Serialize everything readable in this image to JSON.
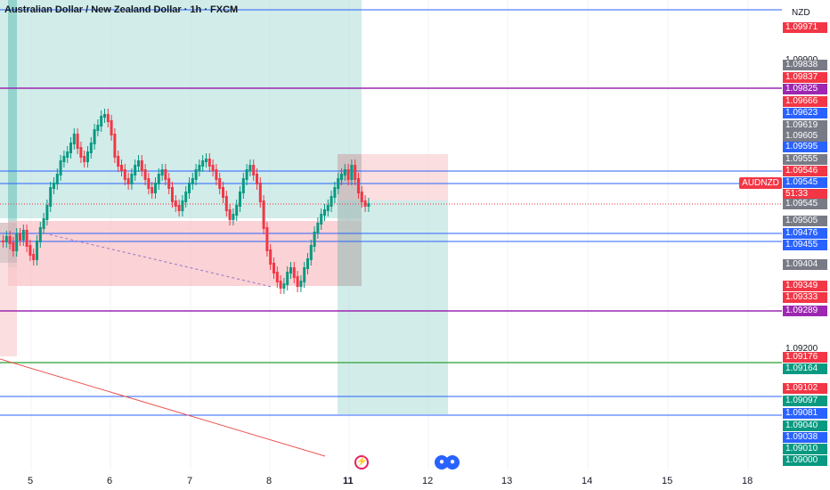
{
  "title": "Australian Dollar / New Zealand Dollar · 1h · FXCM",
  "currency": "NZD",
  "symbol_tag": "AUDNZD",
  "countdown": "51:33",
  "x_axis": [
    "5",
    "6",
    "7",
    "8",
    "11",
    "12",
    "13",
    "14",
    "15",
    "18"
  ],
  "price_tags": [
    {
      "text": "1.09971",
      "color": "#f23645"
    },
    {
      "text": "1.09900",
      "color": ""
    },
    {
      "text": "1.09838",
      "color": "#787b86"
    },
    {
      "text": "1.09837",
      "color": "#f23645"
    },
    {
      "text": "1.09825",
      "color": "#9c27b0"
    },
    {
      "text": "1.09666",
      "color": "#f23645"
    },
    {
      "text": "1.09623",
      "color": "#2962ff"
    },
    {
      "text": "1.09619",
      "color": "#787b86"
    },
    {
      "text": "1.09605",
      "color": "#787b86"
    },
    {
      "text": "1.09595",
      "color": "#2962ff"
    },
    {
      "text": "1.09555",
      "color": "#787b86"
    },
    {
      "text": "1.09546",
      "color": "#f23645"
    },
    {
      "text": "1.09545",
      "color": "#2962ff"
    },
    {
      "text": "1.09545",
      "color": "#787b86"
    },
    {
      "text": "1.09505",
      "color": "#787b86"
    },
    {
      "text": "1.09476",
      "color": "#2962ff"
    },
    {
      "text": "1.09455",
      "color": "#2962ff"
    },
    {
      "text": "1.09404",
      "color": "#787b86"
    },
    {
      "text": "1.09349",
      "color": "#f23645"
    },
    {
      "text": "1.09333",
      "color": "#f23645"
    },
    {
      "text": "1.09289",
      "color": "#9c27b0"
    },
    {
      "text": "1.09200",
      "color": ""
    },
    {
      "text": "1.09176",
      "color": "#f23645"
    },
    {
      "text": "1.09164",
      "color": "#089981"
    },
    {
      "text": "1.09102",
      "color": "#f23645"
    },
    {
      "text": "1.09097",
      "color": "#089981"
    },
    {
      "text": "1.09081",
      "color": "#2962ff"
    },
    {
      "text": "1.09040",
      "color": "#089981"
    },
    {
      "text": "1.09038",
      "color": "#2962ff"
    },
    {
      "text": "1.09010",
      "color": "#089981"
    },
    {
      "text": "1.09000",
      "color": "#089981"
    }
  ],
  "colors": {
    "up": "#089981",
    "down": "#f23645",
    "blue_line": "#2962ff",
    "purple_line": "#9c27b0",
    "green_line": "#4caf50",
    "target_zone": "#b2dfdb",
    "stop_zone": "#f8c8cc"
  }
}
